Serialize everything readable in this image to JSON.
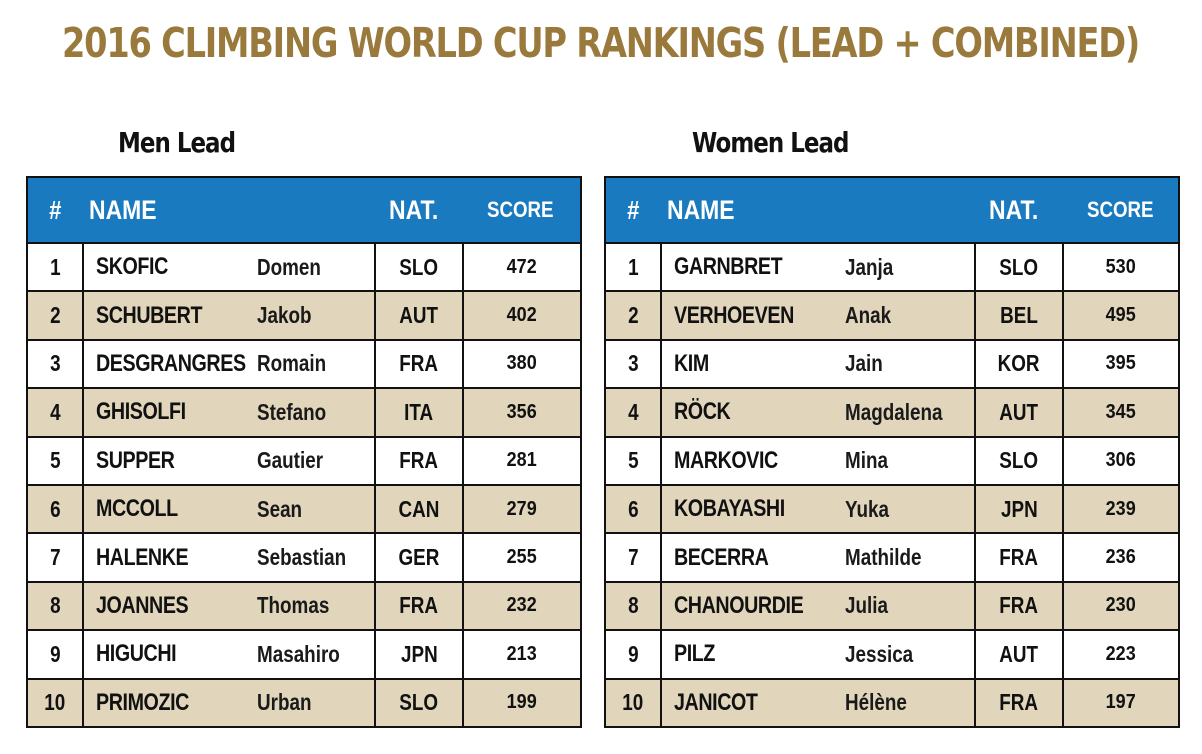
{
  "title": "2016 CLIMBING WORLD CUP RANKINGS (LEAD + COMBINED)",
  "colors": {
    "title": "#9a7a3c",
    "header_bg": "#1a7abf",
    "header_text": "#ffffff",
    "row_alt": "#e1d5bb",
    "row": "#ffffff",
    "border": "#111111"
  },
  "headers": {
    "rank": "#",
    "name": "NAME",
    "nat": "NAT.",
    "score": "SCORE"
  },
  "men": {
    "title": "Men Lead",
    "rows": [
      {
        "rank": "1",
        "last": "SKOFIC",
        "first": "Domen",
        "nat": "SLO",
        "score": "472"
      },
      {
        "rank": "2",
        "last": "SCHUBERT",
        "first": "Jakob",
        "nat": "AUT",
        "score": "402"
      },
      {
        "rank": "3",
        "last": "DESGRANGRES",
        "first": "Romain",
        "nat": "FRA",
        "score": "380"
      },
      {
        "rank": "4",
        "last": "GHISOLFI",
        "first": "Stefano",
        "nat": "ITA",
        "score": "356"
      },
      {
        "rank": "5",
        "last": "SUPPER",
        "first": "Gautier",
        "nat": "FRA",
        "score": "281"
      },
      {
        "rank": "6",
        "last": "MCCOLL",
        "first": "Sean",
        "nat": "CAN",
        "score": "279"
      },
      {
        "rank": "7",
        "last": "HALENKE",
        "first": "Sebastian",
        "nat": "GER",
        "score": "255"
      },
      {
        "rank": "8",
        "last": "JOANNES",
        "first": "Thomas",
        "nat": "FRA",
        "score": "232"
      },
      {
        "rank": "9",
        "last": "HIGUCHI",
        "first": "Masahiro",
        "nat": "JPN",
        "score": "213"
      },
      {
        "rank": "10",
        "last": "PRIMOZIC",
        "first": "Urban",
        "nat": "SLO",
        "score": "199"
      }
    ]
  },
  "women": {
    "title": "Women Lead",
    "rows": [
      {
        "rank": "1",
        "last": "GARNBRET",
        "first": "Janja",
        "nat": "SLO",
        "score": "530"
      },
      {
        "rank": "2",
        "last": "VERHOEVEN",
        "first": "Anak",
        "nat": "BEL",
        "score": "495"
      },
      {
        "rank": "3",
        "last": "KIM",
        "first": "Jain",
        "nat": "KOR",
        "score": "395"
      },
      {
        "rank": "4",
        "last": "RÖCK",
        "first": "Magdalena",
        "nat": "AUT",
        "score": "345"
      },
      {
        "rank": "5",
        "last": "MARKOVIC",
        "first": "Mina",
        "nat": "SLO",
        "score": "306"
      },
      {
        "rank": "6",
        "last": "KOBAYASHI",
        "first": "Yuka",
        "nat": "JPN",
        "score": "239"
      },
      {
        "rank": "7",
        "last": "BECERRA",
        "first": "Mathilde",
        "nat": "FRA",
        "score": "236"
      },
      {
        "rank": "8",
        "last": "CHANOURDIE",
        "first": "Julia",
        "nat": "FRA",
        "score": "230"
      },
      {
        "rank": "9",
        "last": "PILZ",
        "first": "Jessica",
        "nat": "AUT",
        "score": "223"
      },
      {
        "rank": "10",
        "last": "JANICOT",
        "first": "Hélène",
        "nat": "FRA",
        "score": "197"
      }
    ]
  }
}
